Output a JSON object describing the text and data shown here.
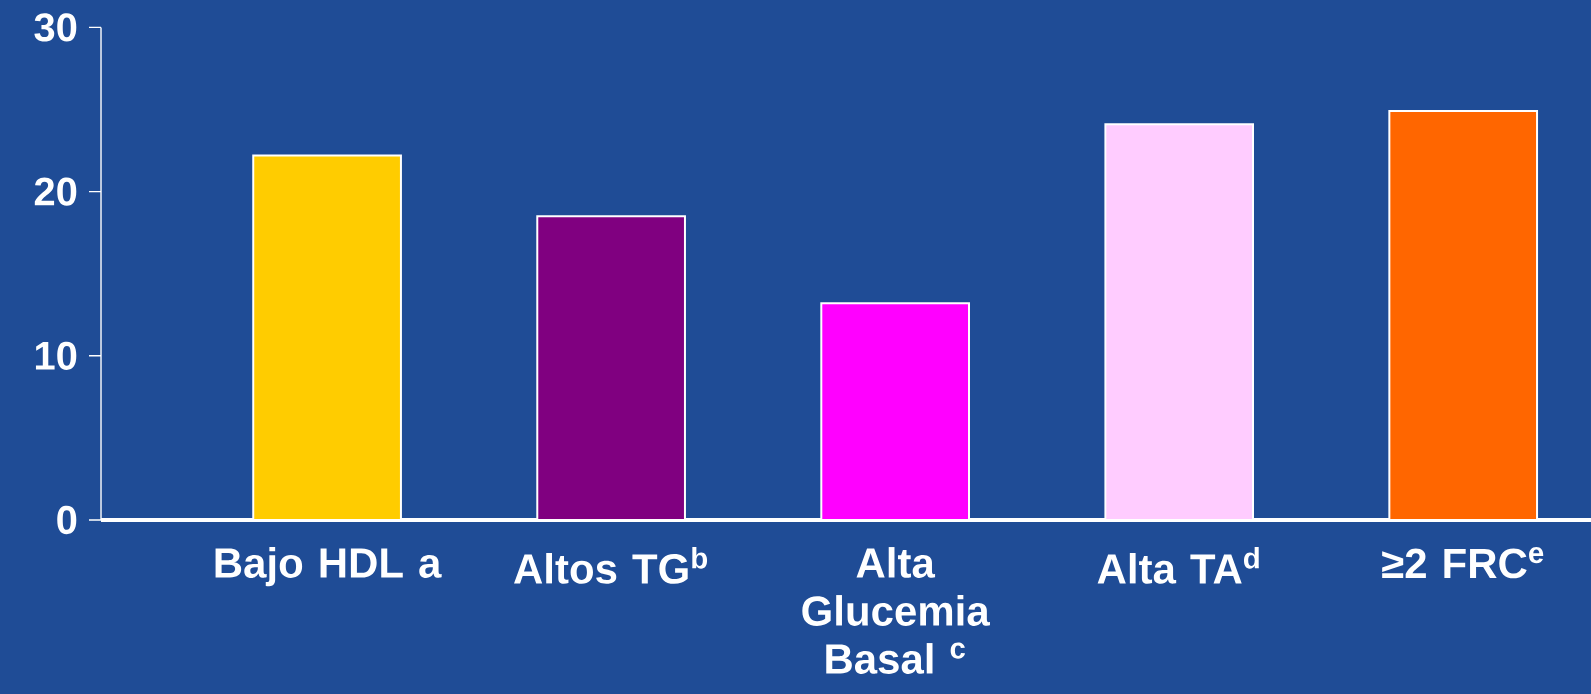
{
  "chart_data": {
    "type": "bar",
    "categories": [
      "Bajo HDL a",
      "Altos TG$^{b}$",
      "Alta Glucemia Basal $^{c}$",
      "Alta TA$^{d}$",
      "≥2 FRC$^{e}$"
    ],
    "values": [
      22.2,
      18.5,
      13.2,
      24.1,
      24.9
    ],
    "colors": [
      "#ffcc00",
      "#800080",
      "#ff00ff",
      "#ffccff",
      "#ff6600"
    ],
    "ylim": [
      0,
      30
    ],
    "yticks": [
      0,
      10,
      20,
      30
    ],
    "grid": false
  }
}
